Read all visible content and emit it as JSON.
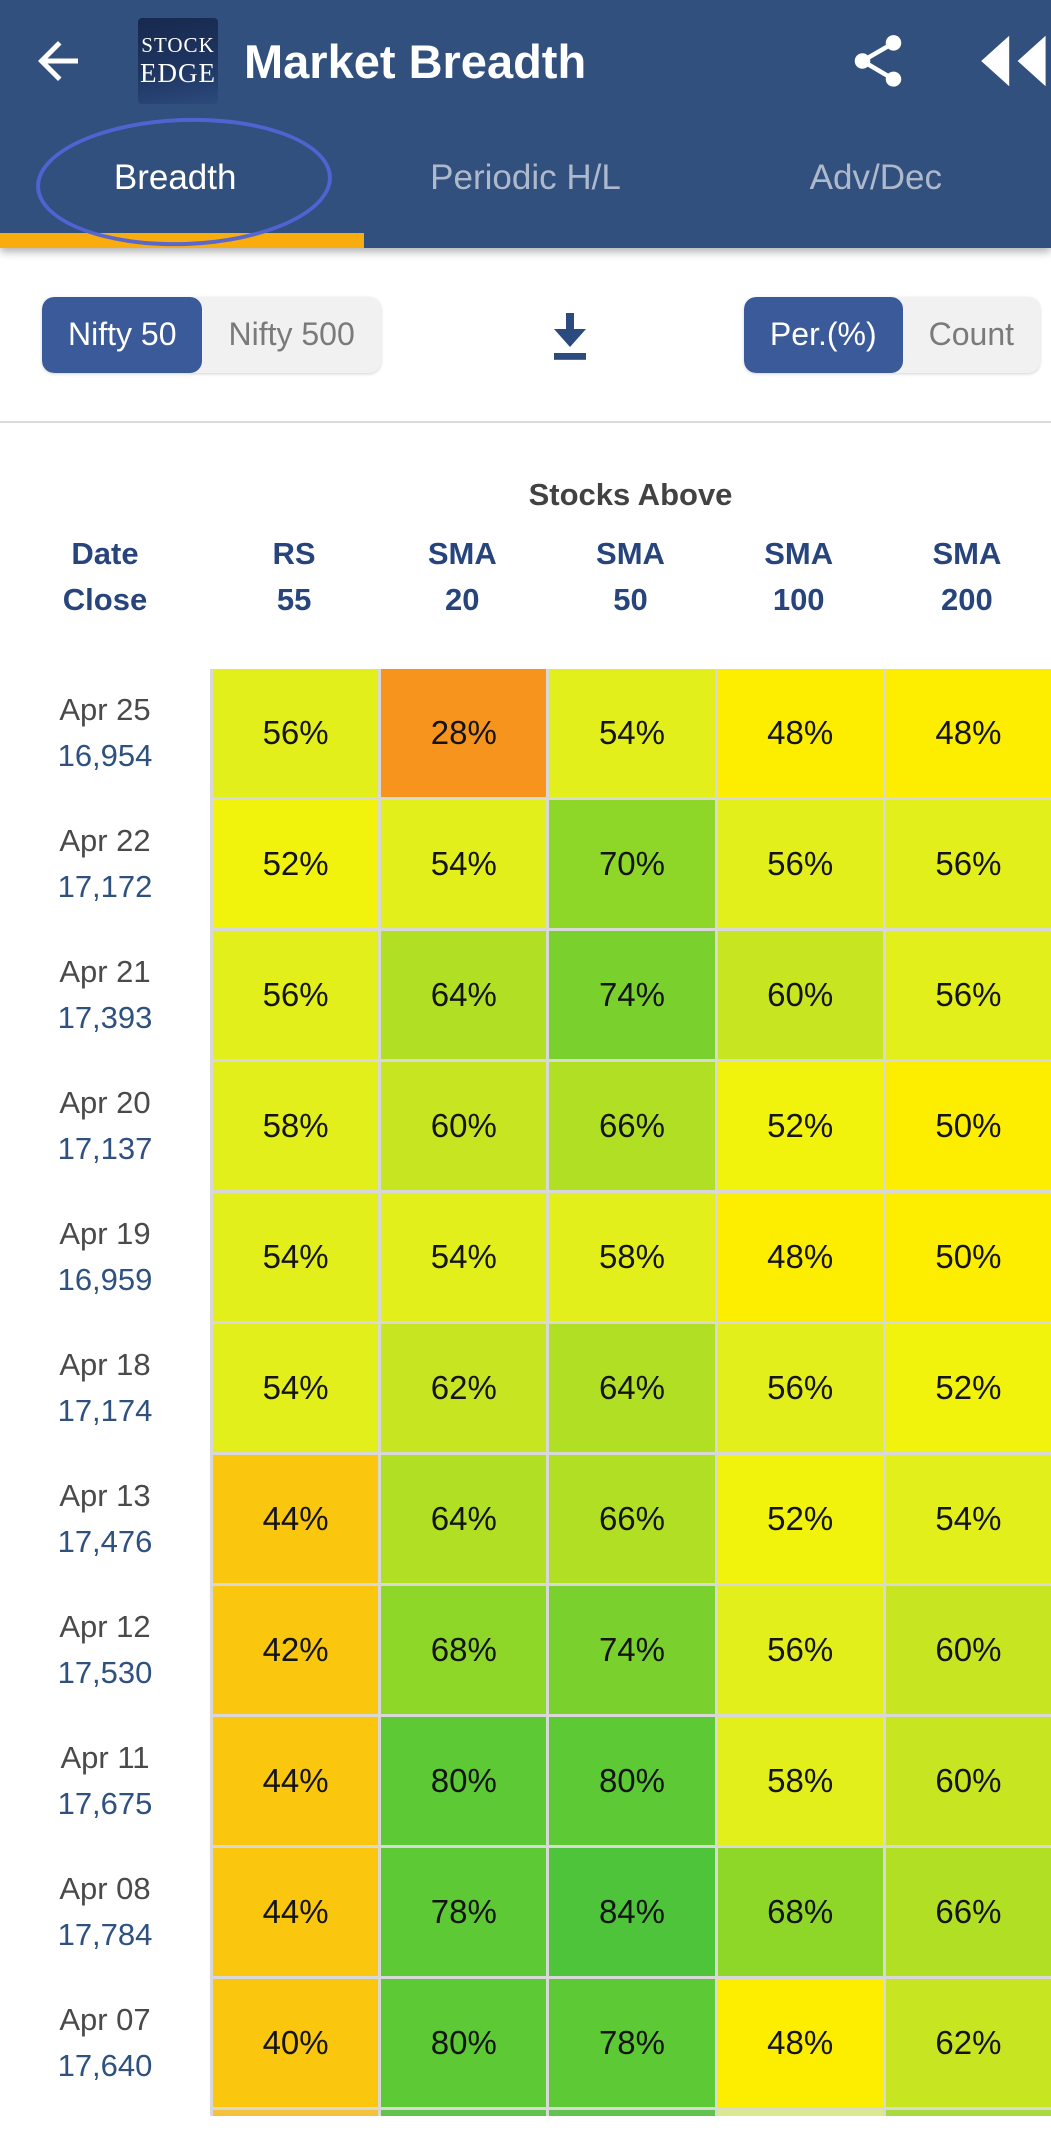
{
  "app_bar": {
    "title": "Market Breadth",
    "logo": {
      "line1": "STOCK",
      "line2": "EDGE"
    },
    "icons": {
      "back": "back-arrow",
      "share": "share",
      "rewind": "double-left"
    }
  },
  "tabs": [
    {
      "label": "Breadth",
      "active": true
    },
    {
      "label": "Periodic H/L",
      "active": false
    },
    {
      "label": "Adv/Dec",
      "active": false
    }
  ],
  "controls": {
    "index_toggle": [
      {
        "label": "Nifty 50",
        "active": true
      },
      {
        "label": "Nifty 500",
        "active": false
      }
    ],
    "mode_toggle": [
      {
        "label": "Per.(%)",
        "active": true
      },
      {
        "label": "Count",
        "active": false
      }
    ],
    "download_icon": "download"
  },
  "table": {
    "group_header": "Stocks Above",
    "columns": [
      {
        "l1": "Date",
        "l2": "Close"
      },
      {
        "l1": "RS",
        "l2": "55"
      },
      {
        "l1": "SMA",
        "l2": "20"
      },
      {
        "l1": "SMA",
        "l2": "50"
      },
      {
        "l1": "SMA",
        "l2": "100"
      },
      {
        "l1": "SMA",
        "l2": "200"
      }
    ]
  },
  "chart_data": {
    "type": "heatmap",
    "title": "Stocks Above",
    "unit": "%",
    "columns": [
      "RS 55",
      "SMA 20",
      "SMA 50",
      "SMA 100",
      "SMA 200"
    ],
    "rows": [
      {
        "date": "Apr 25",
        "close": "16,954",
        "values": [
          56,
          28,
          54,
          48,
          48
        ]
      },
      {
        "date": "Apr 22",
        "close": "17,172",
        "values": [
          52,
          54,
          70,
          56,
          56
        ]
      },
      {
        "date": "Apr 21",
        "close": "17,393",
        "values": [
          56,
          64,
          74,
          60,
          56
        ]
      },
      {
        "date": "Apr 20",
        "close": "17,137",
        "values": [
          58,
          60,
          66,
          52,
          50
        ]
      },
      {
        "date": "Apr 19",
        "close": "16,959",
        "values": [
          54,
          54,
          58,
          48,
          50
        ]
      },
      {
        "date": "Apr 18",
        "close": "17,174",
        "values": [
          54,
          62,
          64,
          56,
          52
        ]
      },
      {
        "date": "Apr 13",
        "close": "17,476",
        "values": [
          44,
          64,
          66,
          52,
          54
        ]
      },
      {
        "date": "Apr 12",
        "close": "17,530",
        "values": [
          42,
          68,
          74,
          56,
          60
        ]
      },
      {
        "date": "Apr 11",
        "close": "17,675",
        "values": [
          44,
          80,
          80,
          58,
          60
        ]
      },
      {
        "date": "Apr 08",
        "close": "17,784",
        "values": [
          44,
          78,
          84,
          68,
          66
        ]
      },
      {
        "date": "Apr 07",
        "close": "17,640",
        "values": [
          40,
          80,
          78,
          48,
          62
        ]
      }
    ],
    "color_scale": [
      {
        "min": 83,
        "color": "#4EC43A"
      },
      {
        "min": 77,
        "color": "#5DC934"
      },
      {
        "min": 73,
        "color": "#7AD02C"
      },
      {
        "min": 68,
        "color": "#8ED729"
      },
      {
        "min": 64,
        "color": "#B0DF23"
      },
      {
        "min": 60,
        "color": "#C8E522"
      },
      {
        "min": 54,
        "color": "#E3EF1B"
      },
      {
        "min": 52,
        "color": "#F2F30D"
      },
      {
        "min": 46,
        "color": "#FDEE00"
      },
      {
        "min": 38,
        "color": "#FBC70E"
      },
      {
        "min": 0,
        "color": "#F7941E"
      }
    ],
    "partial_next_row_colors": [
      "#F5C33B",
      "#62C24E",
      "#62C24E",
      "#DDE98F",
      "#A8DB3E"
    ]
  },
  "colors": {
    "app_bar": "#32507D",
    "tab_indicator": "#F8AC0E",
    "active_toggle": "#3A5A99",
    "annotation_ellipse": "#5363D6",
    "grid_gap": "#D8D8D8",
    "close_text": "#2E5180",
    "header_text": "#27457C"
  }
}
